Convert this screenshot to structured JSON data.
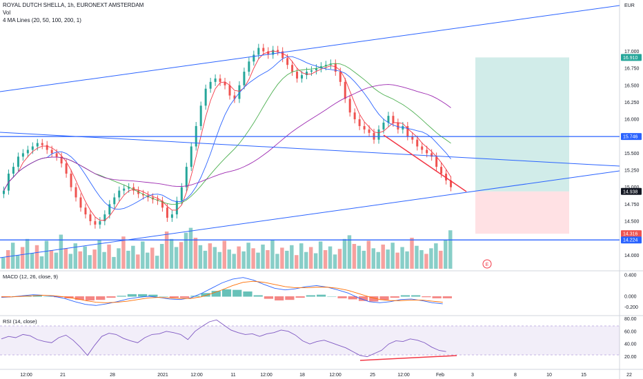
{
  "header": {
    "symbol_line": "ROYAL DUTCH SHELLA, 1h, EURONEXT AMSTERDAM",
    "vol_label": "Vol",
    "ma_label": "4 MA Lines (20, 50, 100, 200, 1)"
  },
  "currency_label": "EUR",
  "macd_label": "MACD (12, 26, close, 9)",
  "rsi_label": "RSI (14, close)",
  "earnings_marker": "E",
  "colors": {
    "up": "#26a69a",
    "down": "#ef5350",
    "trend": "#2962ff",
    "ma20": "#f23645",
    "ma50": "#2962ff",
    "ma100": "#4caf50",
    "ma200": "#9c27b0",
    "rsi": "#7e57c2",
    "target_zone": "#b2dfdb",
    "stop_zone": "#ffcdd2"
  },
  "chart_data": [
    {
      "type": "candlestick",
      "title": "ROYAL DUTCH SHELLA, 1h, EURONEXT AMSTERDAM",
      "y_ticks": [
        "17.000",
        "16.750",
        "16.500",
        "16.250",
        "16.000",
        "15.500",
        "15.250",
        "15.000",
        "14.750",
        "14.500",
        "14.000"
      ],
      "x_ticks": [
        "12:00",
        "21",
        "28",
        "2021",
        "12:00",
        "11",
        "12:00",
        "18",
        "12:00",
        "25",
        "12:00",
        "Feb",
        "3",
        "8",
        "10",
        "15",
        "22"
      ],
      "price_badges": [
        {
          "label": "16.910",
          "value": 16.91,
          "color": "#26a69a"
        },
        {
          "label": "15.746",
          "value": 15.746,
          "color": "#2962ff"
        },
        {
          "label": "14.938",
          "value": 14.938,
          "color": "#131722"
        },
        {
          "label": "14.316",
          "value": 14.316,
          "color": "#ef5350"
        },
        {
          "label": "14.224",
          "value": 14.224,
          "color": "#2962ff"
        }
      ],
      "horizontal_levels": [
        15.746,
        14.224
      ],
      "position_tool": {
        "entry": 14.938,
        "target": 16.91,
        "stop": 14.316
      },
      "close_series": [
        14.95,
        15.2,
        15.3,
        15.45,
        15.5,
        15.55,
        15.6,
        15.65,
        15.62,
        15.55,
        15.5,
        15.45,
        15.35,
        15.2,
        15.0,
        14.85,
        14.7,
        14.6,
        14.5,
        14.45,
        14.5,
        14.6,
        14.75,
        14.85,
        14.95,
        14.98,
        15.0,
        14.95,
        14.9,
        14.88,
        14.85,
        14.82,
        14.8,
        14.7,
        14.55,
        14.6,
        14.8,
        15.0,
        15.3,
        15.6,
        15.9,
        16.2,
        16.45,
        16.55,
        16.6,
        16.55,
        16.5,
        16.35,
        16.3,
        16.5,
        16.7,
        16.85,
        16.95,
        17.05,
        17.0,
        16.95,
        17.02,
        17.0,
        16.9,
        16.8,
        16.7,
        16.6,
        16.65,
        16.7,
        16.72,
        16.75,
        16.78,
        16.8,
        16.82,
        16.7,
        16.55,
        16.3,
        16.1,
        16.0,
        15.9,
        15.85,
        15.8,
        15.7,
        15.85,
        15.95,
        16.05,
        15.95,
        15.85,
        15.9,
        15.75,
        15.7,
        15.6,
        15.55,
        15.5,
        15.45,
        15.3,
        15.2,
        15.1,
        15.0
      ]
    },
    {
      "type": "bar",
      "title": "Vol",
      "values": [
        18,
        30,
        42,
        22,
        35,
        48,
        25,
        38,
        20,
        45,
        30,
        26,
        55,
        33,
        24,
        41,
        28,
        36,
        22,
        31,
        47,
        27,
        39,
        19,
        33,
        52,
        29,
        37,
        23,
        44,
        26,
        34,
        21,
        40,
        60,
        48,
        35,
        43,
        58,
        66,
        50,
        38,
        29,
        41,
        35,
        27,
        45,
        31,
        24,
        36,
        28,
        42,
        33,
        26,
        39,
        30,
        47,
        24,
        34,
        29,
        38,
        22,
        41,
        27,
        35,
        25,
        44,
        30,
        36,
        23,
        32,
        48,
        54,
        40,
        37,
        29,
        45,
        33,
        27,
        39,
        31,
        42,
        26,
        35,
        28,
        50,
        37,
        30,
        24,
        33,
        41,
        29,
        46,
        62
      ]
    },
    {
      "type": "line",
      "title": "MACD (12, 26, close, 9)",
      "y_ticks": [
        "0.400",
        "0.000",
        "-0.200"
      ],
      "series": [
        {
          "name": "MACD",
          "values": [
            -0.02,
            -0.01,
            0.01,
            0.03,
            0.02,
            0.0,
            -0.04,
            -0.1,
            -0.15,
            -0.17,
            -0.14,
            -0.1,
            -0.05,
            -0.02,
            0.0,
            -0.02,
            -0.05,
            -0.06,
            -0.03,
            0.05,
            0.15,
            0.25,
            0.32,
            0.35,
            0.3,
            0.22,
            0.15,
            0.12,
            0.14,
            0.18,
            0.2,
            0.17,
            0.12,
            0.06,
            -0.03,
            -0.1,
            -0.12,
            -0.1,
            -0.06,
            -0.05,
            -0.08,
            -0.12,
            -0.14
          ]
        },
        {
          "name": "Signal",
          "values": [
            -0.01,
            -0.01,
            0.0,
            0.01,
            0.02,
            0.01,
            -0.01,
            -0.04,
            -0.08,
            -0.11,
            -0.12,
            -0.11,
            -0.09,
            -0.06,
            -0.03,
            -0.02,
            -0.03,
            -0.04,
            -0.04,
            -0.01,
            0.05,
            0.12,
            0.2,
            0.26,
            0.28,
            0.26,
            0.22,
            0.18,
            0.16,
            0.16,
            0.17,
            0.17,
            0.15,
            0.11,
            0.05,
            -0.01,
            -0.06,
            -0.08,
            -0.08,
            -0.07,
            -0.07,
            -0.09,
            -0.11
          ]
        }
      ]
    },
    {
      "type": "line",
      "title": "RSI (14, close)",
      "y_ticks": [
        "80.00",
        "60.00",
        "40.00",
        "20.00"
      ],
      "series": [
        {
          "name": "RSI",
          "values": [
            48,
            52,
            50,
            55,
            53,
            47,
            44,
            42,
            50,
            54,
            46,
            35,
            22,
            38,
            52,
            57,
            55,
            49,
            45,
            42,
            50,
            55,
            56,
            60,
            58,
            55,
            47,
            60,
            68,
            75,
            78,
            70,
            62,
            58,
            55,
            56,
            52,
            56,
            58,
            62,
            60,
            54,
            45,
            40,
            44,
            46,
            42,
            38,
            34,
            28,
            22,
            20,
            25,
            30,
            40,
            45,
            44,
            48,
            46,
            42,
            35,
            30,
            28
          ]
        }
      ]
    }
  ]
}
